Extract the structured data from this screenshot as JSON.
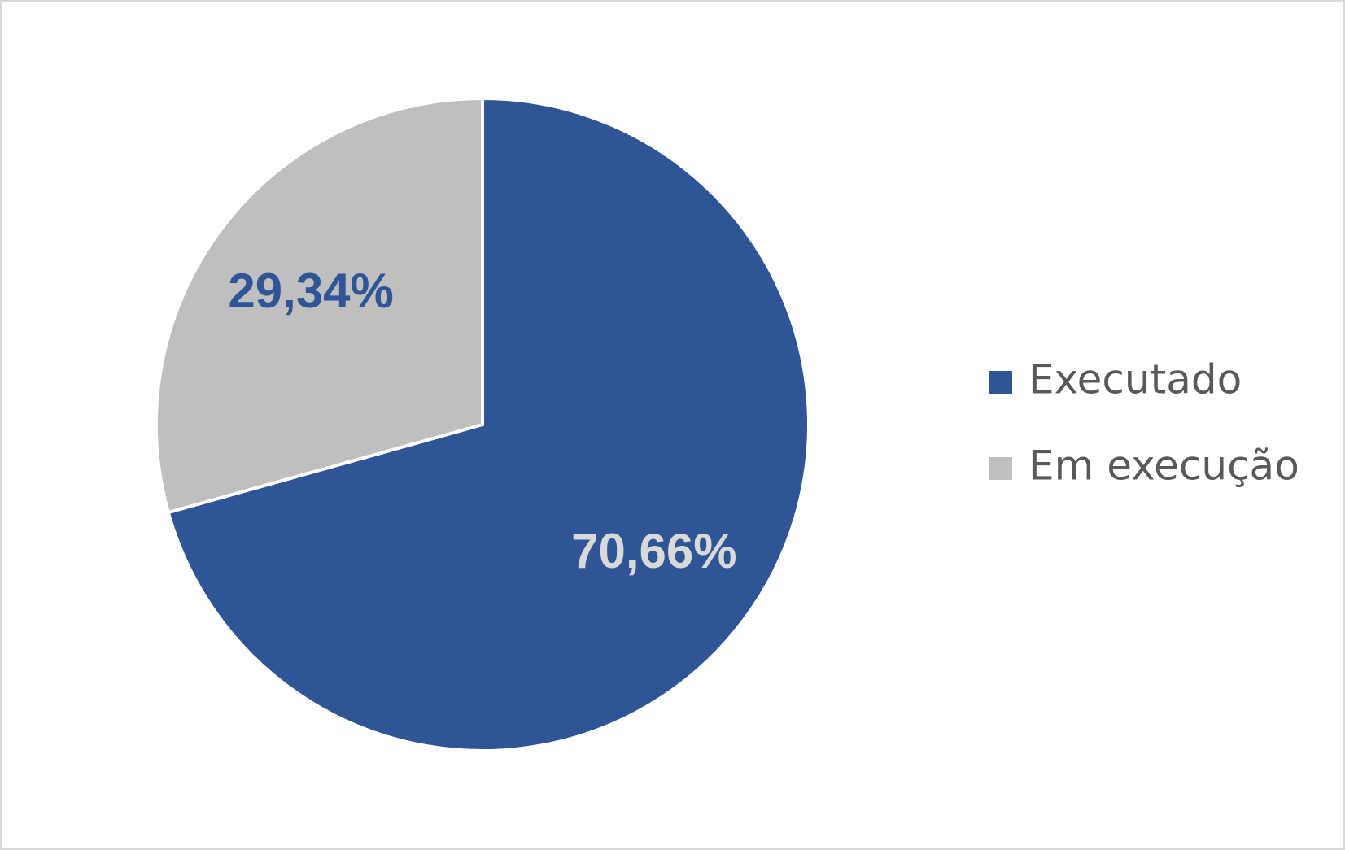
{
  "chart_data": {
    "type": "pie",
    "categories": [
      "Executado",
      "Em execução"
    ],
    "values": [
      70.66,
      29.34
    ],
    "value_labels": [
      "70,66%",
      "29,34%"
    ],
    "colors": [
      "#2f5597",
      "#bfbfbf"
    ],
    "label_colors": [
      "#d9d9d9",
      "#2f5597"
    ],
    "legend": "right"
  }
}
